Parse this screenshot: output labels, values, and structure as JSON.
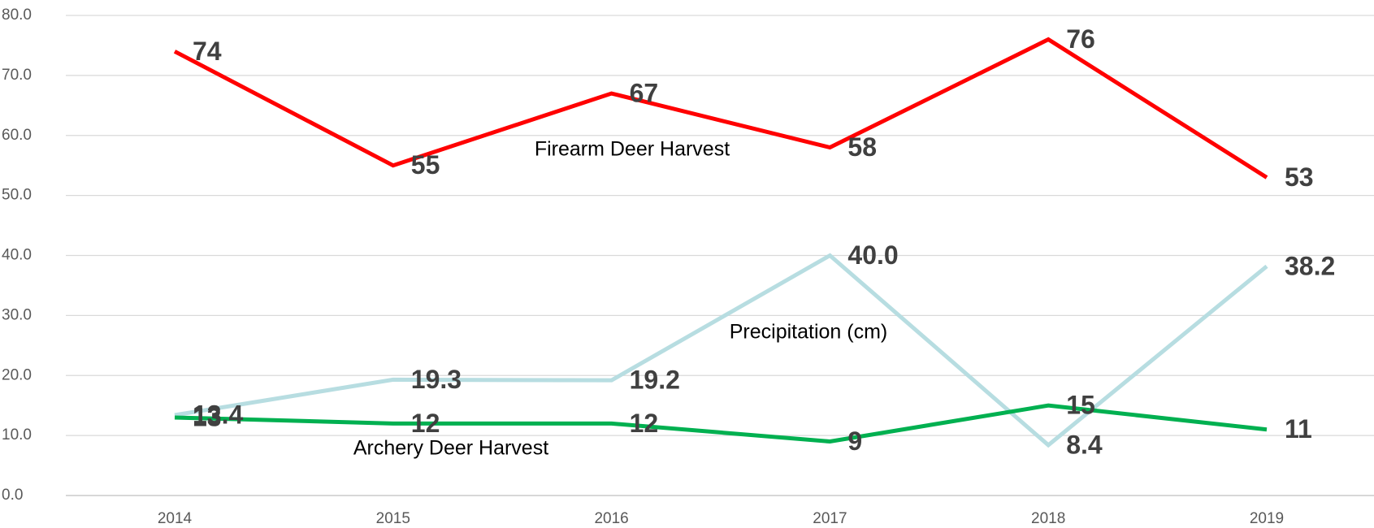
{
  "chart_data": {
    "type": "line",
    "categories": [
      "2014",
      "2015",
      "2016",
      "2017",
      "2018",
      "2019"
    ],
    "series": [
      {
        "name": "Firearm Deer Harvest",
        "color": "#ff0000",
        "values": [
          74,
          55,
          67,
          58,
          76,
          53
        ]
      },
      {
        "name": "Precipitation (cm)",
        "color": "#b7dde1",
        "values": [
          13.4,
          19.3,
          19.2,
          40.0,
          8.4,
          38.2
        ],
        "value_labels": [
          "13.4",
          "19.3",
          "19.2",
          "40.0",
          "8.4",
          "38.2"
        ]
      },
      {
        "name": "Archery Deer Harvest",
        "color": "#00b050",
        "values": [
          13,
          12,
          12,
          9,
          15,
          11
        ]
      }
    ],
    "ylim": [
      0,
      80
    ],
    "yticks": [
      {
        "value": 0,
        "label": "0.0"
      },
      {
        "value": 10,
        "label": "10.0"
      },
      {
        "value": 20,
        "label": "20.0"
      },
      {
        "value": 30,
        "label": "30.0"
      },
      {
        "value": 40,
        "label": "40.0"
      },
      {
        "value": 50,
        "label": "50.0"
      },
      {
        "value": 60,
        "label": "60.0"
      },
      {
        "value": 70,
        "label": "70.0"
      },
      {
        "value": 80,
        "label": "80.0"
      }
    ],
    "grid": true
  }
}
